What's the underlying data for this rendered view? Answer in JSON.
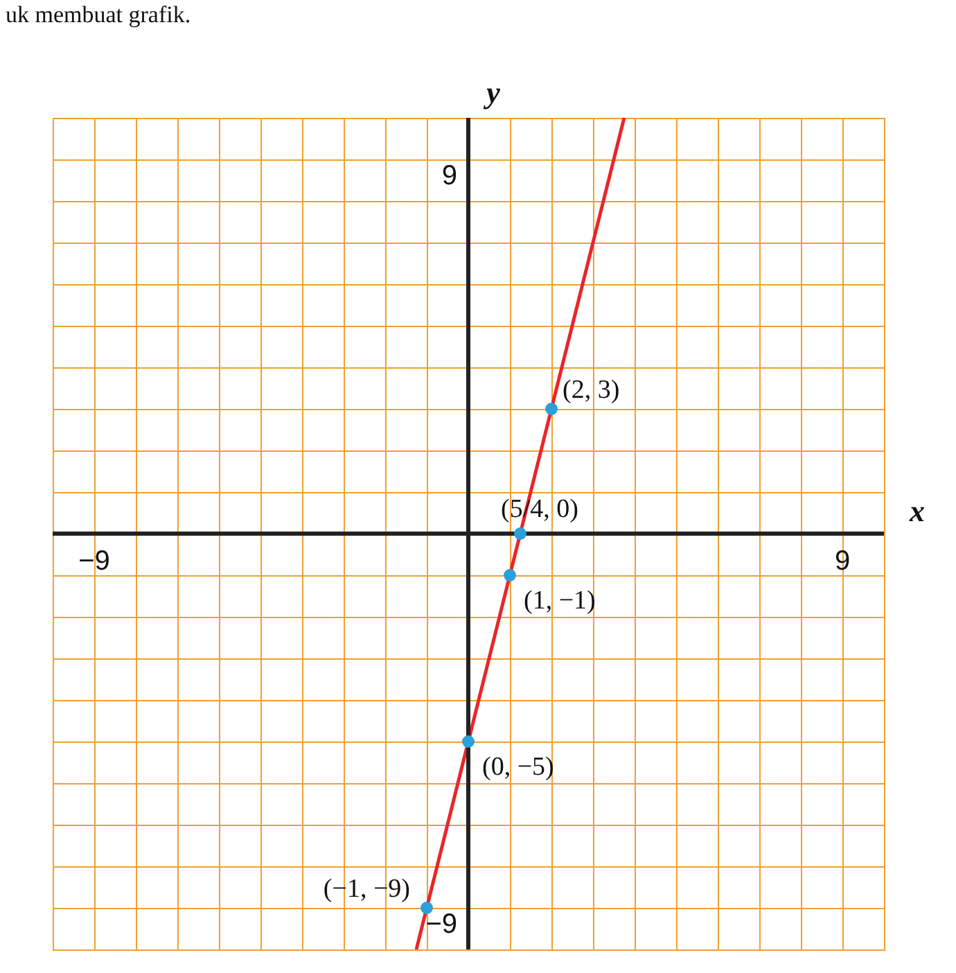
{
  "chart_data": {
    "type": "line",
    "xlabel": "x",
    "ylabel": "y",
    "annotations": [
      "uk membuat grafik.",
      {
        "text": "(2, 3)",
        "x": 2,
        "y": 3
      },
      {
        "text": "(5/4, 0)",
        "x": 1.25,
        "y": 0
      },
      {
        "text": "(1, −1)",
        "x": 1,
        "y": -1
      },
      {
        "text": "(0, −5)",
        "x": 0,
        "y": -5
      },
      {
        "text": "(−1, −9)",
        "x": -1,
        "y": -9
      }
    ],
    "series": [
      {
        "type": "line",
        "color": "#e8262a",
        "x": [
          -1.25,
          3.75
        ],
        "values": [
          -10,
          10
        ]
      },
      {
        "type": "scatter",
        "marker": "circle",
        "color": "#2b9fd9",
        "x": [
          -1,
          0,
          1,
          1.25,
          2
        ],
        "values": [
          -9,
          -5,
          -1,
          0,
          3
        ]
      }
    ],
    "xlim": [
      -10,
      10
    ],
    "ylim": [
      -10,
      10
    ],
    "xticks": [
      {
        "value": -9,
        "label": "−9"
      },
      {
        "value": -8,
        "label": null
      },
      {
        "value": -7,
        "label": null
      },
      {
        "value": -6,
        "label": null
      },
      {
        "value": -5,
        "label": null
      },
      {
        "value": -4,
        "label": null
      },
      {
        "value": -3,
        "label": null
      },
      {
        "value": -2,
        "label": null
      },
      {
        "value": -1,
        "label": null
      },
      {
        "value": 0,
        "label": null
      },
      {
        "value": 1,
        "label": null
      },
      {
        "value": 2,
        "label": null
      },
      {
        "value": 3,
        "label": null
      },
      {
        "value": 4,
        "label": null
      },
      {
        "value": 5,
        "label": null
      },
      {
        "value": 6,
        "label": null
      },
      {
        "value": 7,
        "label": null
      },
      {
        "value": 8,
        "label": null
      },
      9
    ],
    "yticks": [
      {
        "value": -9,
        "label": "−9"
      },
      {
        "value": -8,
        "label": null
      },
      {
        "value": -7,
        "label": null
      },
      {
        "value": -6,
        "label": null
      },
      {
        "value": -5,
        "label": null
      },
      {
        "value": -4,
        "label": null
      },
      {
        "value": -3,
        "label": null
      },
      {
        "value": -2,
        "label": null
      },
      {
        "value": -1,
        "label": null
      },
      {
        "value": 0,
        "label": null
      },
      {
        "value": 1,
        "label": null
      },
      {
        "value": 2,
        "label": null
      },
      {
        "value": 3,
        "label": null
      },
      {
        "value": 4,
        "label": null
      },
      {
        "value": 5,
        "label": null
      },
      {
        "value": 6,
        "label": null
      },
      {
        "value": 7,
        "label": null
      },
      {
        "value": 8,
        "label": null
      },
      9
    ],
    "grid": true
  }
}
